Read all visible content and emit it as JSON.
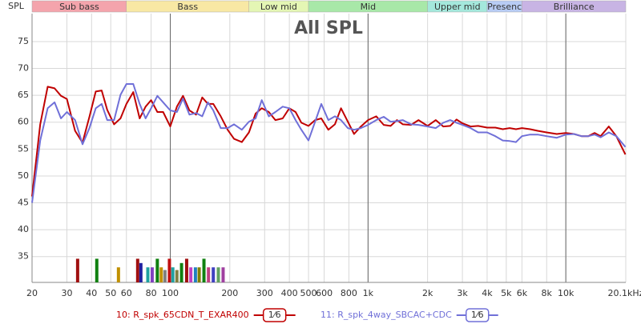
{
  "chart_data": {
    "type": "line",
    "title": "All SPL",
    "y_label": "SPL",
    "x": [
      20,
      22,
      24,
      26,
      28,
      30,
      33,
      36,
      39,
      42,
      45,
      48,
      52,
      56,
      60,
      65,
      70,
      75,
      80,
      86,
      92,
      100,
      108,
      116,
      125,
      135,
      145,
      155,
      165,
      180,
      195,
      210,
      230,
      250,
      270,
      290,
      315,
      340,
      370,
      400,
      430,
      460,
      500,
      540,
      580,
      630,
      680,
      730,
      790,
      850,
      920,
      1000,
      1100,
      1200,
      1300,
      1400,
      1500,
      1650,
      1800,
      2000,
      2200,
      2400,
      2600,
      2800,
      3000,
      3300,
      3600,
      4000,
      4400,
      4800,
      5200,
      5600,
      6000,
      6600,
      7200,
      8000,
      9000,
      10000,
      11000,
      12000,
      13000,
      14000,
      15000,
      16500,
      18000,
      20000
    ],
    "series": [
      {
        "name": "10: R_spk_65CDN_T_EXAR400",
        "color": "#c00000",
        "smoothing": "1⁄6",
        "values": [
          46.2,
          59.6,
          66.6,
          66.3,
          64.9,
          64.3,
          58.4,
          56.2,
          61.0,
          65.7,
          65.9,
          62.3,
          59.6,
          60.7,
          63.4,
          65.6,
          60.7,
          62.9,
          64.1,
          61.9,
          61.9,
          59.2,
          62.9,
          64.9,
          62.2,
          61.4,
          64.6,
          63.4,
          63.4,
          61.1,
          58.6,
          56.9,
          56.3,
          58.1,
          61.6,
          62.6,
          61.9,
          60.4,
          60.7,
          62.6,
          61.9,
          59.9,
          59.3,
          60.4,
          60.7,
          58.6,
          59.6,
          62.6,
          60.1,
          57.8,
          59.2,
          60.4,
          61.1,
          59.5,
          59.3,
          60.4,
          59.6,
          59.5,
          60.4,
          59.3,
          60.4,
          59.2,
          59.3,
          60.5,
          59.8,
          59.2,
          59.3,
          59.0,
          59.0,
          58.7,
          58.9,
          58.7,
          58.9,
          58.7,
          58.4,
          58.1,
          57.8,
          58.0,
          57.8,
          57.4,
          57.4,
          58.0,
          57.4,
          59.2,
          57.4,
          54.0
        ]
      },
      {
        "name": "11: R_spk_4way_SBCAC+CDC",
        "color": "#7070d8",
        "smoothing": "1⁄6",
        "values": [
          45.0,
          56.6,
          62.6,
          63.7,
          60.7,
          61.9,
          60.4,
          55.9,
          58.9,
          62.6,
          63.4,
          60.4,
          60.4,
          65.1,
          67.1,
          67.1,
          63.4,
          60.7,
          62.6,
          64.9,
          63.7,
          62.2,
          61.9,
          64.4,
          61.4,
          61.7,
          61.1,
          63.7,
          62.2,
          58.9,
          58.9,
          59.6,
          58.6,
          60.1,
          60.7,
          64.1,
          61.1,
          61.9,
          62.9,
          62.6,
          60.4,
          58.6,
          56.6,
          60.1,
          63.4,
          60.4,
          61.1,
          60.4,
          58.9,
          58.6,
          58.9,
          59.5,
          60.4,
          61.0,
          60.1,
          60.2,
          60.4,
          59.6,
          59.5,
          59.2,
          58.9,
          59.9,
          60.4,
          59.9,
          59.5,
          58.9,
          58.1,
          58.1,
          57.4,
          56.6,
          56.5,
          56.3,
          57.4,
          57.7,
          57.7,
          57.4,
          57.1,
          57.7,
          57.8,
          57.4,
          57.4,
          57.7,
          57.2,
          58.1,
          57.4,
          55.4
        ]
      }
    ],
    "xlim": [
      20,
      20100
    ],
    "x_log": true,
    "xticks": [
      20,
      30,
      40,
      50,
      60,
      80,
      100,
      200,
      300,
      400,
      500,
      600,
      800,
      {
        "value": 1000,
        "label": "1k"
      },
      {
        "value": 2000,
        "label": "2k"
      },
      {
        "value": 3000,
        "label": "3k"
      },
      {
        "value": 4000,
        "label": "4k"
      },
      {
        "value": 5000,
        "label": "5k"
      },
      {
        "value": 6000,
        "label": "6k"
      },
      {
        "value": 8000,
        "label": "8k"
      },
      {
        "value": 10000,
        "label": "10k"
      },
      {
        "value": 20100,
        "label": "20.1kHz"
      }
    ],
    "major_x": [
      100,
      1000,
      10000
    ],
    "ylim": [
      30.2,
      80.2
    ],
    "yticks": [
      35,
      40,
      45,
      50,
      55,
      60,
      65,
      70,
      75
    ],
    "grid": true,
    "bands": [
      {
        "name": "Sub bass",
        "from": 20,
        "to": 60,
        "color": "#f4a4ac"
      },
      {
        "name": "Bass",
        "from": 60,
        "to": 250,
        "color": "#f8e8a4"
      },
      {
        "name": "Low mid",
        "from": 250,
        "to": 500,
        "color": "#e4f6b4"
      },
      {
        "name": "Mid",
        "from": 500,
        "to": 2000,
        "color": "#a8e8a8"
      },
      {
        "name": "Upper mid",
        "from": 2000,
        "to": 4000,
        "color": "#a4e8dc"
      },
      {
        "name": "Presenc",
        "from": 4000,
        "to": 6000,
        "color": "#b8ccf4"
      },
      {
        "name": "Brilliance",
        "from": 6000,
        "to": 20100,
        "color": "#c8b4e4"
      }
    ],
    "markers": [
      {
        "x": 34,
        "value": 34.6,
        "color": "#a01010"
      },
      {
        "x": 42.5,
        "value": 34.6,
        "color": "#108010"
      },
      {
        "x": 54.7,
        "value": 33.0,
        "color": "#c09000"
      },
      {
        "x": 68.4,
        "value": 34.6,
        "color": "#a01010"
      },
      {
        "x": 71,
        "value": 33.8,
        "color": "#2020a0"
      },
      {
        "x": 77,
        "value": 33.0,
        "color": "#20a0a0"
      },
      {
        "x": 81,
        "value": 33.0,
        "color": "#8040c0"
      },
      {
        "x": 86,
        "value": 34.6,
        "color": "#108010"
      },
      {
        "x": 90,
        "value": 33.0,
        "color": "#c09000"
      },
      {
        "x": 94,
        "value": 32.5,
        "color": "#808080"
      },
      {
        "x": 99,
        "value": 34.6,
        "color": "#c01010"
      },
      {
        "x": 103,
        "value": 33.0,
        "color": "#20a0a0"
      },
      {
        "x": 108,
        "value": 32.5,
        "color": "#808040"
      },
      {
        "x": 114,
        "value": 33.8,
        "color": "#108010"
      },
      {
        "x": 121,
        "value": 34.6,
        "color": "#a01010"
      },
      {
        "x": 127,
        "value": 33.0,
        "color": "#c040c0"
      },
      {
        "x": 134,
        "value": 33.0,
        "color": "#2080c0"
      },
      {
        "x": 140,
        "value": 33.0,
        "color": "#808000"
      },
      {
        "x": 148,
        "value": 34.6,
        "color": "#108010"
      },
      {
        "x": 156,
        "value": 33.0,
        "color": "#c04080"
      },
      {
        "x": 165,
        "value": 33.0,
        "color": "#4040c0"
      },
      {
        "x": 175,
        "value": 33.0,
        "color": "#60a060"
      },
      {
        "x": 185,
        "value": 33.0,
        "color": "#a040a0"
      }
    ]
  }
}
